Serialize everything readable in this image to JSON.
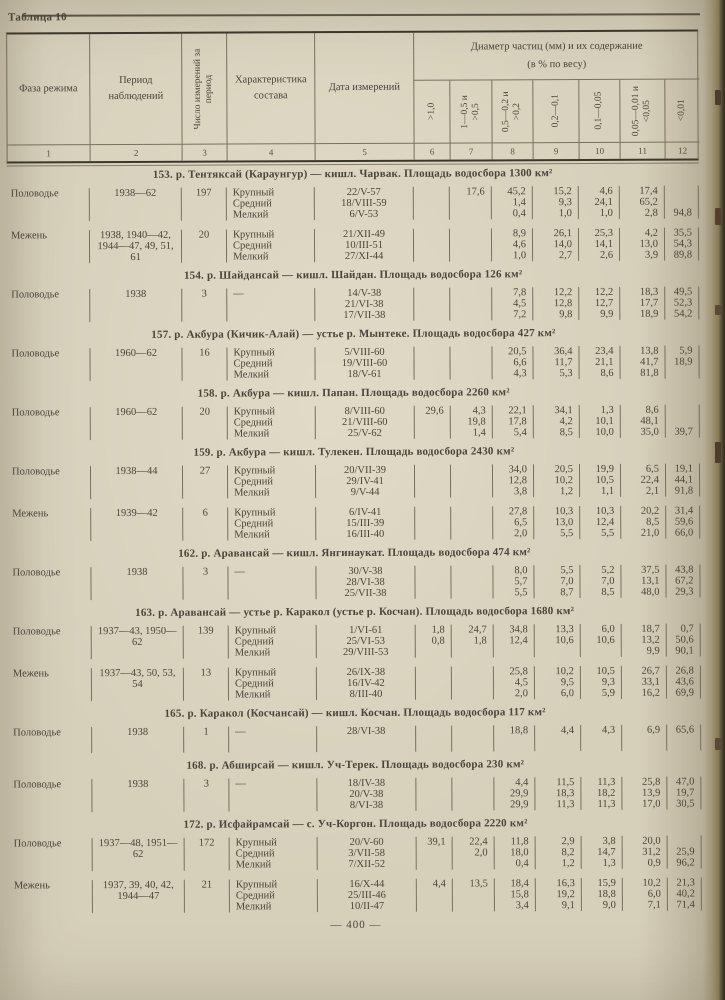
{
  "page": {
    "table_label": "Таблица 10",
    "footer_page_number": "— 400 —"
  },
  "colors": {
    "paper": "#d6cfba",
    "ink": "#4a4539",
    "rule_line": "#77715f",
    "heavy_rule": "#3b3729",
    "book_edge": "#2e2a1c"
  },
  "header": {
    "phase": "Фаза режима",
    "period": "Период наблюдений",
    "count": "Число измерений за период",
    "composition": "Характеристика состава",
    "date": "Дата измерений",
    "diameter_line1": "Диаметр частиц (мм) и их содержание",
    "diameter_line2": "(в % по весу)",
    "diameter_cols": [
      ">1,0",
      "1—0,5 и >0,5",
      "0,5—0,2 и >0,2",
      "0,2—0,1",
      "0,1—0,05",
      "0,05—0,01 и <0,05",
      "<0,01"
    ],
    "col_numbers": [
      "1",
      "2",
      "3",
      "4",
      "5",
      "6",
      "7",
      "8",
      "9",
      "10",
      "11",
      "12"
    ]
  },
  "sections": [
    {
      "title": "153. р. Тентяксай (Караунгур) — кишл. Чарвак. Площадь водосбора 1300 км²",
      "rows": [
        {
          "phase": "Половодье",
          "period": "1938—62",
          "count": "197",
          "lines": [
            {
              "comp": "Крупный",
              "date": "22/V-57",
              "d": [
                "",
                "17,6",
                "45,2",
                "15,2",
                "4,6",
                "17,4",
                ""
              ]
            },
            {
              "comp": "Средний",
              "date": "18/VIII-59",
              "d": [
                "",
                "",
                "1,4",
                "9,3",
                "24,1",
                "65,2",
                ""
              ]
            },
            {
              "comp": "Мелкий",
              "date": "6/V-53",
              "d": [
                "",
                "",
                "0,4",
                "1,0",
                "1,0",
                "2,8",
                "94,8"
              ]
            }
          ]
        },
        {
          "phase": "Межень",
          "period": "1938, 1940—42, 1944—47, 49, 51, 61",
          "count": "20",
          "lines": [
            {
              "comp": "Крупный",
              "date": "21/XII-49",
              "d": [
                "",
                "",
                "8,9",
                "26,1",
                "25,3",
                "4,2",
                "35,5"
              ]
            },
            {
              "comp": "Средний",
              "date": "10/III-51",
              "d": [
                "",
                "",
                "4,6",
                "14,0",
                "14,1",
                "13,0",
                "54,3"
              ]
            },
            {
              "comp": "Мелкий",
              "date": "27/XI-44",
              "d": [
                "",
                "",
                "1,0",
                "2,7",
                "2,6",
                "3,9",
                "89,8"
              ]
            }
          ]
        }
      ]
    },
    {
      "title": "154. р. Шайдансай — кишл. Шайдан. Площадь водосбора 126 км²",
      "rows": [
        {
          "phase": "Половодье",
          "period": "1938",
          "count": "3",
          "lines": [
            {
              "comp": "—",
              "date": "14/V-38",
              "d": [
                "",
                "",
                "7,8",
                "12,2",
                "12,2",
                "18,3",
                "49,5"
              ]
            },
            {
              "comp": "",
              "date": "21/VI-38",
              "d": [
                "",
                "",
                "4,5",
                "12,8",
                "12,7",
                "17,7",
                "52,3"
              ]
            },
            {
              "comp": "",
              "date": "17/VII-38",
              "d": [
                "",
                "",
                "7,2",
                "9,8",
                "9,9",
                "18,9",
                "54,2"
              ]
            }
          ]
        }
      ]
    },
    {
      "title": "157. р. Акбура (Кичик-Алай) — устье р. Мынтеке. Площадь водосбора 427 км²",
      "rows": [
        {
          "phase": "Половодье",
          "period": "1960—62",
          "count": "16",
          "lines": [
            {
              "comp": "Крупный",
              "date": "5/VIII-60",
              "d": [
                "",
                "",
                "20,5",
                "36,4",
                "23,4",
                "13,8",
                "5,9"
              ]
            },
            {
              "comp": "Средний",
              "date": "19/VIII-60",
              "d": [
                "",
                "",
                "6,6",
                "11,7",
                "21,1",
                "41,7",
                "18,9"
              ]
            },
            {
              "comp": "Мелкий",
              "date": "18/V-61",
              "d": [
                "",
                "",
                "4,3",
                "5,3",
                "8,6",
                "81,8",
                ""
              ]
            }
          ]
        }
      ]
    },
    {
      "title": "158. р. Акбура — кишл. Папан. Площадь водосбора 2260 км²",
      "rows": [
        {
          "phase": "Половодье",
          "period": "1960—62",
          "count": "20",
          "lines": [
            {
              "comp": "Крупный",
              "date": "8/VIII-60",
              "d": [
                "29,6",
                "4,3",
                "22,1",
                "34,1",
                "1,3",
                "8,6",
                ""
              ]
            },
            {
              "comp": "Средний",
              "date": "21/VIII-60",
              "d": [
                "",
                "19,8",
                "17,8",
                "4,2",
                "10,1",
                "48,1",
                ""
              ]
            },
            {
              "comp": "Мелкий",
              "date": "25/V-62",
              "d": [
                "",
                "1,4",
                "5,4",
                "8,5",
                "10,0",
                "35,0",
                "39,7"
              ]
            }
          ]
        }
      ]
    },
    {
      "title": "159. р. Акбура — кишл. Тулекен. Площадь водосбора 2430 км²",
      "rows": [
        {
          "phase": "Половодье",
          "period": "1938—44",
          "count": "27",
          "lines": [
            {
              "comp": "Крупный",
              "date": "20/VII-39",
              "d": [
                "",
                "",
                "34,0",
                "20,5",
                "19,9",
                "6,5",
                "19,1"
              ]
            },
            {
              "comp": "Средний",
              "date": "29/IV-41",
              "d": [
                "",
                "",
                "12,8",
                "10,2",
                "10,5",
                "22,4",
                "44,1"
              ]
            },
            {
              "comp": "Мелкий",
              "date": "9/V-44",
              "d": [
                "",
                "",
                "3,8",
                "1,2",
                "1,1",
                "2,1",
                "91,8"
              ]
            }
          ]
        },
        {
          "phase": "Межень",
          "period": "1939—42",
          "count": "6",
          "lines": [
            {
              "comp": "Крупный",
              "date": "6/IV-41",
              "d": [
                "",
                "",
                "27,8",
                "10,3",
                "10,3",
                "20,2",
                "31,4"
              ]
            },
            {
              "comp": "Средний",
              "date": "15/III-39",
              "d": [
                "",
                "",
                "6,5",
                "13,0",
                "12,4",
                "8,5",
                "59,6"
              ]
            },
            {
              "comp": "Мелкий",
              "date": "16/III-40",
              "d": [
                "",
                "",
                "2,0",
                "5,5",
                "5,5",
                "21,0",
                "66,0"
              ]
            }
          ]
        }
      ]
    },
    {
      "title": "162. р. Аравансай — кишл. Янгинаукат. Площадь водосбора 474 км²",
      "rows": [
        {
          "phase": "Половодье",
          "period": "1938",
          "count": "3",
          "lines": [
            {
              "comp": "—",
              "date": "30/V-38",
              "d": [
                "",
                "",
                "8,0",
                "5,5",
                "5,2",
                "37,5",
                "43,8"
              ]
            },
            {
              "comp": "",
              "date": "28/VI-38",
              "d": [
                "",
                "",
                "5,7",
                "7,0",
                "7,0",
                "13,1",
                "67,2"
              ]
            },
            {
              "comp": "",
              "date": "25/VII-38",
              "d": [
                "",
                "",
                "5,5",
                "8,7",
                "8,5",
                "48,0",
                "29,3"
              ]
            }
          ]
        }
      ]
    },
    {
      "title": "163. р. Аравансай — устье р. Каракол (устье р. Косчан). Площадь водосбора 1680 км²",
      "rows": [
        {
          "phase": "Половодье",
          "period": "1937—43, 1950—62",
          "count": "139",
          "lines": [
            {
              "comp": "Крупный",
              "date": "1/VI-61",
              "d": [
                "1,8",
                "24,7",
                "34,8",
                "13,3",
                "6,0",
                "18,7",
                "0,7"
              ]
            },
            {
              "comp": "Средний",
              "date": "25/VI-53",
              "d": [
                "0,8",
                "1,8",
                "12,4",
                "10,6",
                "10,6",
                "13,2",
                "50,6"
              ]
            },
            {
              "comp": "Мелкий",
              "date": "29/VIII-53",
              "d": [
                "",
                "",
                "",
                "",
                "",
                "9,9",
                "90,1"
              ]
            }
          ]
        },
        {
          "phase": "Межень",
          "period": "1937—43, 50, 53, 54",
          "count": "13",
          "lines": [
            {
              "comp": "Крупный",
              "date": "26/IX-38",
              "d": [
                "",
                "",
                "25,8",
                "10,2",
                "10,5",
                "26,7",
                "26,8"
              ]
            },
            {
              "comp": "Средний",
              "date": "16/IV-42",
              "d": [
                "",
                "",
                "4,5",
                "9,5",
                "9,3",
                "33,1",
                "43,6"
              ]
            },
            {
              "comp": "Мелкий",
              "date": "8/III-40",
              "d": [
                "",
                "",
                "2,0",
                "6,0",
                "5,9",
                "16,2",
                "69,9"
              ]
            }
          ]
        }
      ]
    },
    {
      "title": "165. р. Каракол (Косчансай) — кишл. Косчан. Площадь водосбора 117 км²",
      "rows": [
        {
          "phase": "Половодье",
          "period": "1938",
          "count": "1",
          "lines": [
            {
              "comp": "—",
              "date": "28/VI-38",
              "d": [
                "",
                "",
                "18,8",
                "4,4",
                "4,3",
                "6,9",
                "65,6"
              ]
            }
          ]
        }
      ]
    },
    {
      "title": "168. р. Абширсай — кишл. Уч-Терек. Площадь водосбора 230 км²",
      "rows": [
        {
          "phase": "Половодье",
          "period": "1938",
          "count": "3",
          "lines": [
            {
              "comp": "—",
              "date": "18/IV-38",
              "d": [
                "",
                "",
                "4,4",
                "11,5",
                "11,3",
                "25,8",
                "47,0"
              ]
            },
            {
              "comp": "",
              "date": "20/V-38",
              "d": [
                "",
                "",
                "29,9",
                "18,3",
                "18,2",
                "13,9",
                "19,7"
              ]
            },
            {
              "comp": "",
              "date": "8/VI-38",
              "d": [
                "",
                "",
                "29,9",
                "11,3",
                "11,3",
                "17,0",
                "30,5"
              ]
            }
          ]
        }
      ]
    },
    {
      "title": "172. р. Исфайрамсай — с. Уч-Коргон. Площадь водосбора 2220 км²",
      "rows": [
        {
          "phase": "Половодье",
          "period": "1937—48, 1951—62",
          "count": "172",
          "lines": [
            {
              "comp": "Крупный",
              "date": "20/V-60",
              "d": [
                "39,1",
                "22,4",
                "11,8",
                "2,9",
                "3,8",
                "20,0",
                ""
              ]
            },
            {
              "comp": "Средний",
              "date": "3/VII-58",
              "d": [
                "",
                "2,0",
                "18,0",
                "8,2",
                "14,7",
                "31,2",
                "25,9"
              ]
            },
            {
              "comp": "Мелкий",
              "date": "7/XII-52",
              "d": [
                "",
                "",
                "0,4",
                "1,2",
                "1,3",
                "0,9",
                "96,2"
              ]
            }
          ]
        },
        {
          "phase": "Межень",
          "period": "1937, 39, 40, 42, 1944—47",
          "count": "21",
          "lines": [
            {
              "comp": "Крупный",
              "date": "16/X-44",
              "d": [
                "4,4",
                "13,5",
                "18,4",
                "16,3",
                "15,9",
                "10,2",
                "21,3"
              ]
            },
            {
              "comp": "Средний",
              "date": "25/III-46",
              "d": [
                "",
                "",
                "15,8",
                "19,2",
                "18,8",
                "6,0",
                "40,2"
              ]
            },
            {
              "comp": "Мелкий",
              "date": "10/II-47",
              "d": [
                "",
                "",
                "3,4",
                "9,1",
                "9,0",
                "7,1",
                "71,4"
              ]
            }
          ]
        }
      ]
    }
  ]
}
